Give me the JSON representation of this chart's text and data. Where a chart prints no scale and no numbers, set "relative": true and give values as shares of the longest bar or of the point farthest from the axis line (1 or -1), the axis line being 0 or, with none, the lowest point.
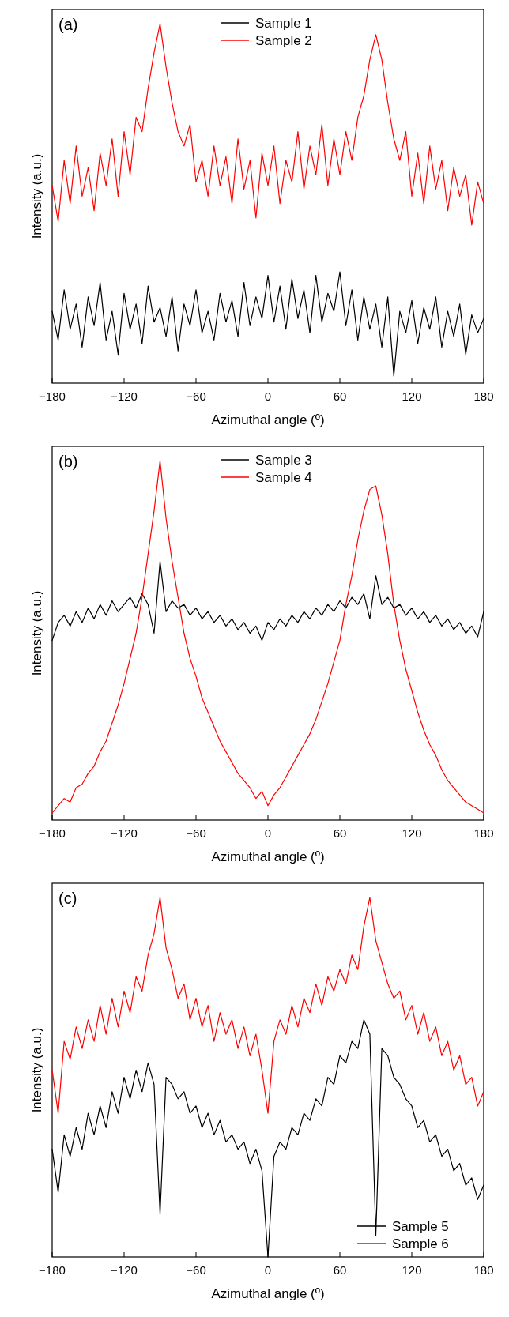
{
  "chart_data": [
    {
      "type": "line",
      "annotations": [
        "(a)"
      ],
      "xlabel": "Azimuthal angle (º)",
      "ylabel": "Intensity (a.u.)",
      "relative": true,
      "legend": "top",
      "xlim": [
        -180,
        180
      ],
      "xticks": [
        -180,
        -120,
        -60,
        0,
        60,
        120,
        180
      ],
      "x": [
        -180,
        -175,
        -170,
        -165,
        -160,
        -155,
        -150,
        -145,
        -140,
        -135,
        -130,
        -125,
        -120,
        -115,
        -110,
        -105,
        -100,
        -95,
        -90,
        -85,
        -80,
        -75,
        -70,
        -65,
        -60,
        -55,
        -50,
        -45,
        -40,
        -35,
        -30,
        -25,
        -20,
        -15,
        -10,
        -5,
        0,
        5,
        10,
        15,
        20,
        25,
        30,
        35,
        40,
        45,
        50,
        55,
        60,
        65,
        70,
        75,
        80,
        85,
        90,
        95,
        100,
        105,
        110,
        115,
        120,
        125,
        130,
        135,
        140,
        145,
        150,
        155,
        160,
        165,
        170,
        175,
        180
      ],
      "series": [
        {
          "name": "Sample 1",
          "color": "#000000",
          "values": [
            0.2,
            0.12,
            0.26,
            0.15,
            0.22,
            0.1,
            0.24,
            0.16,
            0.28,
            0.12,
            0.2,
            0.08,
            0.25,
            0.15,
            0.22,
            0.11,
            0.27,
            0.17,
            0.21,
            0.13,
            0.24,
            0.09,
            0.22,
            0.16,
            0.26,
            0.14,
            0.2,
            0.12,
            0.25,
            0.17,
            0.23,
            0.13,
            0.28,
            0.16,
            0.24,
            0.18,
            0.3,
            0.17,
            0.27,
            0.15,
            0.29,
            0.18,
            0.26,
            0.14,
            0.3,
            0.17,
            0.25,
            0.2,
            0.31,
            0.16,
            0.26,
            0.12,
            0.24,
            0.15,
            0.22,
            0.1,
            0.24,
            0.02,
            0.2,
            0.14,
            0.23,
            0.11,
            0.21,
            0.15,
            0.24,
            0.1,
            0.2,
            0.13,
            0.22,
            0.08,
            0.19,
            0.14,
            0.18
          ]
        },
        {
          "name": "Sample 2",
          "color": "#ff0000",
          "values": [
            0.55,
            0.45,
            0.62,
            0.5,
            0.66,
            0.52,
            0.6,
            0.48,
            0.64,
            0.55,
            0.68,
            0.52,
            0.7,
            0.58,
            0.74,
            0.7,
            0.82,
            0.92,
            1.0,
            0.88,
            0.78,
            0.7,
            0.66,
            0.72,
            0.56,
            0.62,
            0.52,
            0.66,
            0.55,
            0.63,
            0.5,
            0.68,
            0.54,
            0.62,
            0.46,
            0.64,
            0.55,
            0.66,
            0.5,
            0.62,
            0.56,
            0.7,
            0.54,
            0.66,
            0.58,
            0.72,
            0.55,
            0.68,
            0.58,
            0.7,
            0.62,
            0.74,
            0.8,
            0.9,
            0.97,
            0.9,
            0.78,
            0.68,
            0.62,
            0.7,
            0.52,
            0.64,
            0.5,
            0.66,
            0.54,
            0.62,
            0.48,
            0.6,
            0.52,
            0.58,
            0.44,
            0.56,
            0.5
          ]
        }
      ]
    },
    {
      "type": "line",
      "annotations": [
        "(b)"
      ],
      "xlabel": "Azimuthal angle (º)",
      "ylabel": "Intensity (a.u.)",
      "relative": true,
      "legend": "top",
      "xlim": [
        -180,
        180
      ],
      "xticks": [
        -180,
        -120,
        -60,
        0,
        60,
        120,
        180
      ],
      "x": [
        -180,
        -175,
        -170,
        -165,
        -160,
        -155,
        -150,
        -145,
        -140,
        -135,
        -130,
        -125,
        -120,
        -115,
        -110,
        -105,
        -100,
        -95,
        -90,
        -85,
        -80,
        -75,
        -70,
        -65,
        -60,
        -55,
        -50,
        -45,
        -40,
        -35,
        -30,
        -25,
        -20,
        -15,
        -10,
        -5,
        0,
        5,
        10,
        15,
        20,
        25,
        30,
        35,
        40,
        45,
        50,
        55,
        60,
        65,
        70,
        75,
        80,
        85,
        90,
        95,
        100,
        105,
        110,
        115,
        120,
        125,
        130,
        135,
        140,
        145,
        150,
        155,
        160,
        165,
        170,
        175,
        180
      ],
      "series": [
        {
          "name": "Sample 3",
          "color": "#000000",
          "values": [
            0.5,
            0.55,
            0.57,
            0.54,
            0.58,
            0.55,
            0.59,
            0.56,
            0.6,
            0.57,
            0.61,
            0.58,
            0.6,
            0.62,
            0.59,
            0.63,
            0.6,
            0.52,
            0.72,
            0.58,
            0.61,
            0.59,
            0.6,
            0.57,
            0.59,
            0.56,
            0.58,
            0.55,
            0.57,
            0.54,
            0.56,
            0.53,
            0.55,
            0.52,
            0.54,
            0.5,
            0.55,
            0.53,
            0.56,
            0.54,
            0.57,
            0.55,
            0.58,
            0.56,
            0.59,
            0.57,
            0.6,
            0.58,
            0.61,
            0.59,
            0.62,
            0.6,
            0.63,
            0.56,
            0.68,
            0.6,
            0.62,
            0.59,
            0.6,
            0.57,
            0.59,
            0.56,
            0.58,
            0.55,
            0.57,
            0.54,
            0.56,
            0.53,
            0.55,
            0.52,
            0.54,
            0.51,
            0.58
          ]
        },
        {
          "name": "Sample 4",
          "color": "#ff0000",
          "values": [
            0.02,
            0.04,
            0.06,
            0.05,
            0.09,
            0.1,
            0.13,
            0.15,
            0.19,
            0.22,
            0.27,
            0.32,
            0.38,
            0.45,
            0.52,
            0.62,
            0.74,
            0.86,
            1.0,
            0.84,
            0.72,
            0.62,
            0.52,
            0.45,
            0.4,
            0.34,
            0.3,
            0.26,
            0.22,
            0.19,
            0.16,
            0.13,
            0.11,
            0.09,
            0.06,
            0.08,
            0.04,
            0.07,
            0.09,
            0.12,
            0.15,
            0.18,
            0.21,
            0.24,
            0.28,
            0.33,
            0.38,
            0.44,
            0.5,
            0.6,
            0.68,
            0.78,
            0.86,
            0.92,
            0.93,
            0.85,
            0.74,
            0.6,
            0.5,
            0.42,
            0.36,
            0.3,
            0.25,
            0.21,
            0.18,
            0.14,
            0.11,
            0.09,
            0.07,
            0.05,
            0.04,
            0.03,
            0.02
          ]
        }
      ]
    },
    {
      "type": "line",
      "annotations": [
        "(c)"
      ],
      "xlabel": "Azimuthal angle (º)",
      "ylabel": "Intensity (a.u.)",
      "relative": true,
      "legend": "bottom right",
      "xlim": [
        -180,
        180
      ],
      "xticks": [
        -180,
        -120,
        -60,
        0,
        60,
        120,
        180
      ],
      "x": [
        -180,
        -175,
        -170,
        -165,
        -160,
        -155,
        -150,
        -145,
        -140,
        -135,
        -130,
        -125,
        -120,
        -115,
        -110,
        -105,
        -100,
        -95,
        -90,
        -85,
        -80,
        -75,
        -70,
        -65,
        -60,
        -55,
        -50,
        -45,
        -40,
        -35,
        -30,
        -25,
        -20,
        -15,
        -10,
        -5,
        0,
        5,
        10,
        15,
        20,
        25,
        30,
        35,
        40,
        45,
        50,
        55,
        60,
        65,
        70,
        75,
        80,
        85,
        90,
        95,
        100,
        105,
        110,
        115,
        120,
        125,
        130,
        135,
        140,
        145,
        150,
        155,
        160,
        165,
        170,
        175,
        180
      ],
      "series": [
        {
          "name": "Sample 5",
          "color": "#000000",
          "values": [
            0.3,
            0.18,
            0.34,
            0.28,
            0.36,
            0.3,
            0.4,
            0.34,
            0.42,
            0.36,
            0.46,
            0.4,
            0.5,
            0.44,
            0.52,
            0.46,
            0.54,
            0.48,
            0.12,
            0.5,
            0.48,
            0.44,
            0.46,
            0.4,
            0.42,
            0.36,
            0.4,
            0.34,
            0.38,
            0.32,
            0.34,
            0.3,
            0.32,
            0.26,
            0.3,
            0.24,
            0.0,
            0.28,
            0.32,
            0.3,
            0.36,
            0.34,
            0.4,
            0.38,
            0.44,
            0.42,
            0.5,
            0.48,
            0.56,
            0.54,
            0.6,
            0.58,
            0.66,
            0.62,
            0.06,
            0.58,
            0.56,
            0.5,
            0.48,
            0.44,
            0.42,
            0.36,
            0.38,
            0.32,
            0.34,
            0.28,
            0.3,
            0.24,
            0.26,
            0.2,
            0.22,
            0.16,
            0.2
          ]
        },
        {
          "name": "Sample 6",
          "color": "#ff0000",
          "values": [
            0.52,
            0.4,
            0.6,
            0.55,
            0.64,
            0.58,
            0.66,
            0.6,
            0.7,
            0.62,
            0.72,
            0.64,
            0.74,
            0.68,
            0.78,
            0.74,
            0.84,
            0.9,
            1.0,
            0.86,
            0.8,
            0.72,
            0.76,
            0.66,
            0.72,
            0.64,
            0.7,
            0.6,
            0.68,
            0.62,
            0.66,
            0.58,
            0.64,
            0.56,
            0.62,
            0.52,
            0.4,
            0.6,
            0.66,
            0.62,
            0.7,
            0.64,
            0.72,
            0.68,
            0.76,
            0.7,
            0.78,
            0.74,
            0.8,
            0.76,
            0.84,
            0.8,
            0.92,
            1.0,
            0.88,
            0.82,
            0.76,
            0.72,
            0.74,
            0.66,
            0.7,
            0.62,
            0.68,
            0.6,
            0.64,
            0.56,
            0.6,
            0.52,
            0.56,
            0.48,
            0.5,
            0.42,
            0.46
          ]
        }
      ]
    }
  ]
}
